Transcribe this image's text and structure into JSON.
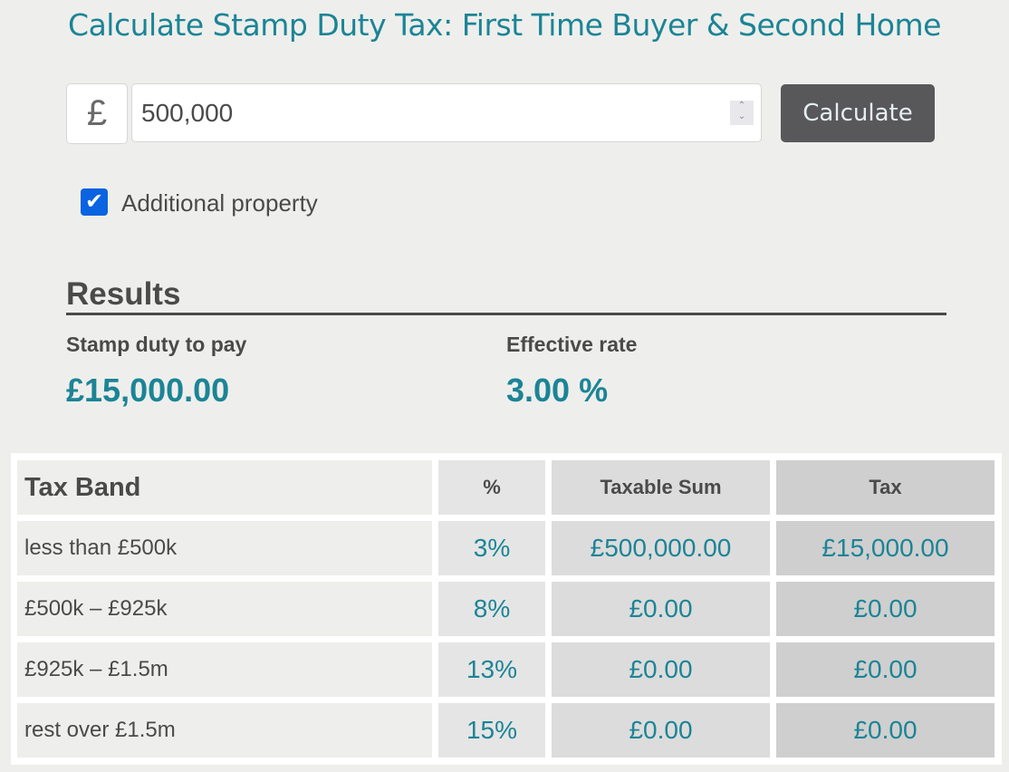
{
  "title": "Calculate Stamp Duty Tax: First Time Buyer & Second Home",
  "form": {
    "currency_symbol": "£",
    "price_value": "500,000",
    "calculate_label": "Calculate",
    "additional_property_label": "Additional property",
    "additional_property_checked": true
  },
  "results": {
    "heading": "Results",
    "duty_label": "Stamp duty to pay",
    "duty_value": "£15,000.00",
    "rate_label": "Effective rate",
    "rate_value": "3.00 %"
  },
  "table": {
    "headers": [
      "Tax Band",
      "%",
      "Taxable Sum",
      "Tax"
    ],
    "rows": [
      [
        "less than £500k",
        "3%",
        "£500,000.00",
        "£15,000.00"
      ],
      [
        "£500k – £925k",
        "8%",
        "£0.00",
        "£0.00"
      ],
      [
        "£925k – £1.5m",
        "13%",
        "£0.00",
        "£0.00"
      ],
      [
        "rest over £1.5m",
        "15%",
        "£0.00",
        "£0.00"
      ]
    ]
  },
  "colors": {
    "accent": "#1c8496",
    "button": "#58585a",
    "checkbox": "#0a63e0"
  }
}
